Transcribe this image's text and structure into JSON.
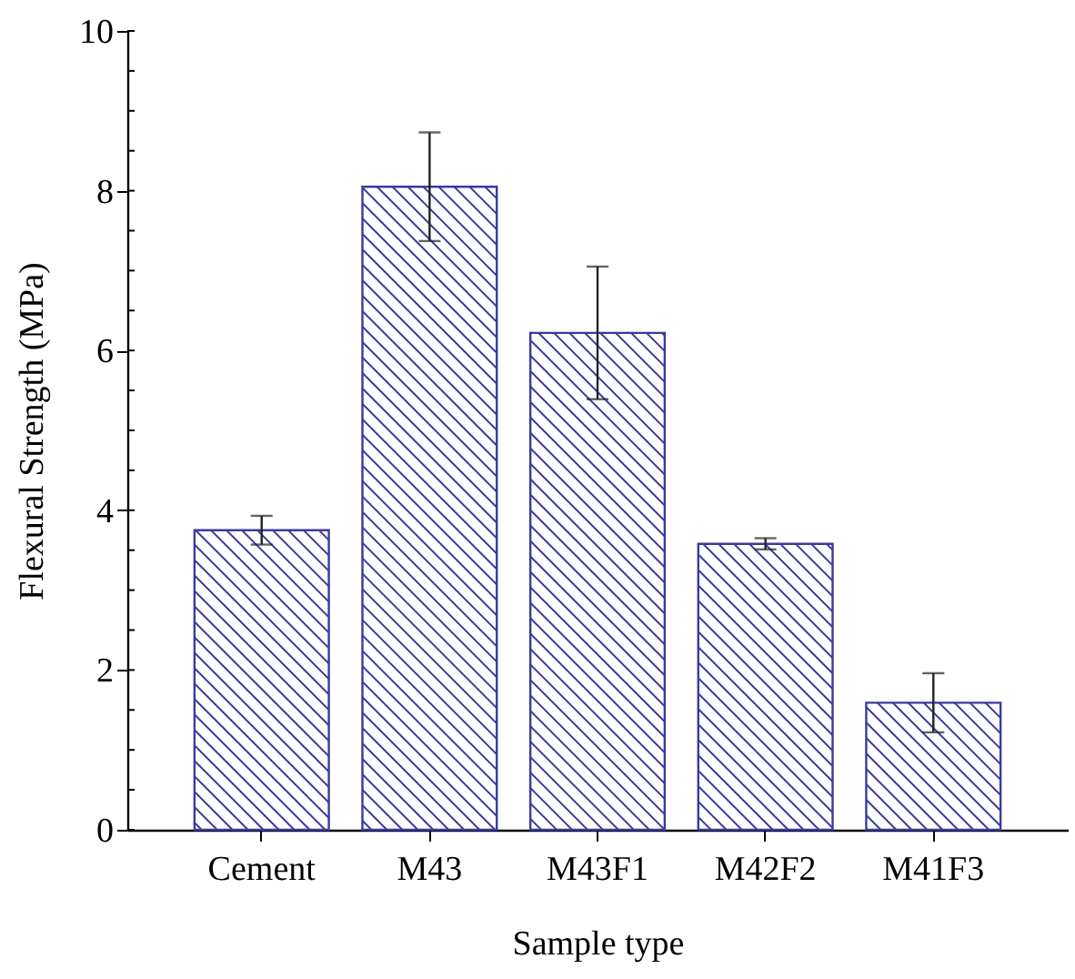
{
  "chart_data": {
    "type": "bar",
    "xlabel": "Sample type",
    "ylabel": "Flexural Strength (MPa)",
    "categories": [
      "Cement",
      "M43",
      "M43F1",
      "M42F2",
      "M41F3"
    ],
    "values": [
      3.75,
      8.05,
      6.22,
      3.58,
      1.59
    ],
    "errors": [
      0.18,
      0.68,
      0.83,
      0.07,
      0.37
    ],
    "color": "#3a3aa0",
    "ylim": [
      0,
      10
    ],
    "yticks": [
      0,
      2,
      4,
      6,
      8,
      10
    ],
    "grid": false
  }
}
